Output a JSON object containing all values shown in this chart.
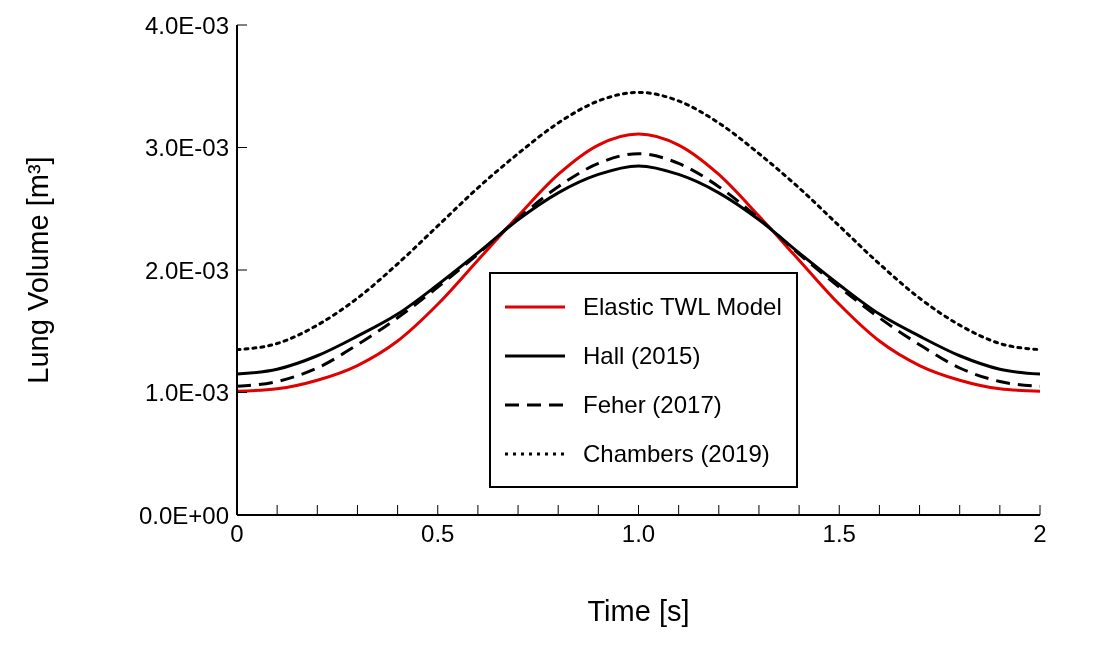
{
  "chart_data": {
    "type": "line",
    "xlabel": "Time [s]",
    "ylabel": "Lung Volume [m³]",
    "x": [
      0,
      0.1,
      0.2,
      0.3,
      0.4,
      0.5,
      0.6,
      0.7,
      0.8,
      0.9,
      1.0,
      1.1,
      1.2,
      1.3,
      1.4,
      1.5,
      1.6,
      1.7,
      1.8,
      1.9,
      2.0
    ],
    "series": [
      {
        "name": "Elastic TWL Model",
        "color": "#e00000",
        "line_style": "solid",
        "values": [
          0.00101,
          0.00103,
          0.0011,
          0.00122,
          0.00142,
          0.00172,
          0.00208,
          0.00244,
          0.00278,
          0.00302,
          0.00311,
          0.00302,
          0.00278,
          0.00244,
          0.00208,
          0.00172,
          0.00142,
          0.00122,
          0.0011,
          0.00103,
          0.00101
        ]
      },
      {
        "name": "Hall (2015)",
        "color": "#000000",
        "line_style": "solid",
        "values": [
          0.00115,
          0.00119,
          0.0013,
          0.00146,
          0.00164,
          0.00188,
          0.00214,
          0.00241,
          0.00263,
          0.00278,
          0.00285,
          0.00278,
          0.00263,
          0.00241,
          0.00214,
          0.00188,
          0.00164,
          0.00146,
          0.0013,
          0.00119,
          0.00115
        ]
      },
      {
        "name": "Feher (2017)",
        "color": "#000000",
        "line_style": "dashed",
        "values": [
          0.00105,
          0.00109,
          0.0012,
          0.00139,
          0.00161,
          0.00186,
          0.00213,
          0.00242,
          0.00268,
          0.00287,
          0.00295,
          0.00287,
          0.00268,
          0.00242,
          0.00213,
          0.00186,
          0.00161,
          0.00139,
          0.0012,
          0.00109,
          0.00105
        ]
      },
      {
        "name": "Chambers (2019)",
        "color": "#000000",
        "line_style": "dotted",
        "values": [
          0.00135,
          0.0014,
          0.00155,
          0.00177,
          0.00205,
          0.00236,
          0.00267,
          0.00295,
          0.0032,
          0.00338,
          0.00345,
          0.00338,
          0.0032,
          0.00295,
          0.00267,
          0.00236,
          0.00205,
          0.00177,
          0.00155,
          0.0014,
          0.00135
        ]
      }
    ],
    "xlim": [
      0,
      2
    ],
    "xticks": [
      0,
      {
        "value": 0.1,
        "label": null
      },
      {
        "value": 0.2,
        "label": null
      },
      {
        "value": 0.3,
        "label": null
      },
      {
        "value": 0.4,
        "label": null
      },
      0.5,
      {
        "value": 0.6,
        "label": null
      },
      {
        "value": 0.7,
        "label": null
      },
      {
        "value": 0.8,
        "label": null
      },
      {
        "value": 0.9,
        "label": null
      },
      {
        "value": 1,
        "label": "1.0"
      },
      {
        "value": 1.1,
        "label": null
      },
      {
        "value": 1.2,
        "label": null
      },
      {
        "value": 1.3,
        "label": null
      },
      {
        "value": 1.4,
        "label": null
      },
      1.5,
      {
        "value": 1.6,
        "label": null
      },
      {
        "value": 1.7,
        "label": null
      },
      {
        "value": 1.8,
        "label": null
      },
      {
        "value": 1.9,
        "label": null
      },
      2
    ],
    "ylim": [
      0,
      0.004
    ],
    "yticks": [
      {
        "value": 0,
        "label": "0.0E+00"
      },
      {
        "value": 0.001,
        "label": "1.0E-03"
      },
      {
        "value": 0.002,
        "label": "2.0E-03"
      },
      {
        "value": 0.003,
        "label": "3.0E-03"
      },
      {
        "value": 0.004,
        "label": "4.0E-03"
      }
    ],
    "legend": "bottom",
    "grid": false,
    "marker": "none"
  }
}
